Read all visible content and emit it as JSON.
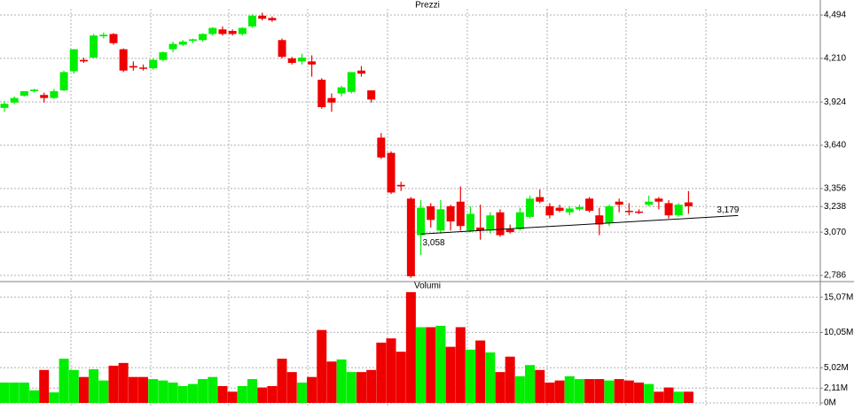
{
  "chart_data": [
    {
      "type": "candlestick",
      "title": "Prezzi",
      "up_color": "#00ee00",
      "down_color": "#ee0000",
      "open": [
        3885,
        3920,
        3965,
        3995,
        3970,
        3950,
        4000,
        4125,
        4200,
        4215,
        4355,
        4370,
        4270,
        4160,
        4150,
        4145,
        4200,
        4270,
        4300,
        4325,
        4330,
        4370,
        4400,
        4390,
        4370,
        4420,
        4490,
        4475,
        4330,
        4210,
        4190,
        4190,
        4070,
        3950,
        3980,
        3990,
        4130,
        4000,
        3690,
        3590,
        3380,
        3290,
        3050,
        3240,
        3080,
        3240,
        3270,
        3080,
        3100,
        3080,
        3200,
        3090,
        3090,
        3170,
        3300,
        3240,
        3230,
        3200,
        3220,
        3290,
        3180,
        3130,
        3270,
        3210,
        3205,
        3250,
        3290,
        3260,
        3180,
        3265
      ],
      "high": [
        3930,
        3960,
        3990,
        4010,
        3985,
        4010,
        4130,
        4270,
        4215,
        4370,
        4380,
        4375,
        4275,
        4190,
        4170,
        4210,
        4255,
        4320,
        4330,
        4340,
        4375,
        4415,
        4420,
        4400,
        4415,
        4500,
        4510,
        4485,
        4340,
        4220,
        4240,
        4230,
        4080,
        3980,
        4030,
        4120,
        4160,
        4000,
        3720,
        3600,
        3400,
        3300,
        3280,
        3260,
        3280,
        3250,
        3370,
        3240,
        3250,
        3200,
        3220,
        3120,
        3230,
        3310,
        3350,
        3260,
        3250,
        3240,
        3250,
        3300,
        3230,
        3250,
        3290,
        3260,
        3220,
        3310,
        3300,
        3280,
        3260,
        3340
      ],
      "low": [
        3860,
        3910,
        3960,
        3985,
        3920,
        3945,
        3995,
        4110,
        4180,
        4210,
        4340,
        4300,
        4120,
        4130,
        4130,
        4135,
        4190,
        4250,
        4290,
        4310,
        4320,
        4360,
        4360,
        4360,
        4360,
        4410,
        4460,
        4450,
        4210,
        4170,
        4170,
        4090,
        3880,
        3860,
        3960,
        3980,
        4090,
        3920,
        3550,
        3320,
        3340,
        2770,
        2920,
        3100,
        3060,
        3080,
        3080,
        3070,
        3020,
        3060,
        3040,
        3060,
        3080,
        3160,
        3260,
        3160,
        3200,
        3180,
        3210,
        3200,
        3050,
        3110,
        3200,
        3180,
        3190,
        3240,
        3220,
        3160,
        3170,
        3190
      ],
      "close": [
        3912,
        3950,
        3995,
        4005,
        3950,
        3995,
        4120,
        4270,
        4190,
        4360,
        4365,
        4310,
        4130,
        4150,
        4145,
        4200,
        4250,
        4305,
        4320,
        4335,
        4370,
        4410,
        4370,
        4370,
        4410,
        4490,
        4470,
        4460,
        4220,
        4180,
        4215,
        4170,
        3890,
        3920,
        4020,
        4120,
        4110,
        3940,
        3560,
        3330,
        3370,
        2780,
        3230,
        3150,
        3220,
        3140,
        3110,
        3190,
        3080,
        3180,
        3050,
        3070,
        3200,
        3290,
        3270,
        3180,
        3210,
        3225,
        3235,
        3210,
        3120,
        3240,
        3250,
        3205,
        3200,
        3270,
        3270,
        3180,
        3250,
        3240
      ],
      "trendline": {
        "x": [
          42,
          74
        ],
        "values": [
          3058,
          3179
        ],
        "value_labels": [
          "3,058",
          "3,179"
        ],
        "color": "#000000"
      },
      "ylim": [
        2757,
        4535
      ],
      "yticks": [
        {
          "value": 2786,
          "label": "2,786"
        },
        {
          "value": 3070,
          "label": "3,070"
        },
        {
          "value": 3238,
          "label": "3,238"
        },
        {
          "value": 3356,
          "label": "3,356"
        },
        {
          "value": 3640,
          "label": "3,640"
        },
        {
          "value": 3924,
          "label": "3,924"
        },
        {
          "value": 4210,
          "label": "4,210"
        },
        {
          "value": 4494,
          "label": "4,494"
        }
      ],
      "grid": true
    },
    {
      "type": "bar",
      "title": "Volumi",
      "values": [
        2.9,
        2.9,
        2.9,
        1.8,
        4.7,
        1.5,
        6.3,
        4.7,
        3.7,
        4.8,
        3.2,
        5.3,
        5.7,
        3.7,
        3.7,
        3.4,
        3.2,
        2.9,
        2.4,
        2.7,
        3.4,
        3.7,
        2.4,
        1.6,
        2.4,
        3.4,
        2.2,
        2.4,
        6.3,
        4.4,
        2.9,
        3.7,
        10.4,
        5.9,
        6.2,
        4.4,
        4.4,
        4.7,
        8.6,
        9.2,
        7.3,
        15.8,
        10.8,
        10.8,
        11.0,
        8.0,
        10.8,
        7.6,
        8.9,
        7.2,
        4.4,
        6.6,
        3.8,
        5.4,
        4.7,
        2.9,
        3.2,
        3.8,
        3.4,
        3.4,
        3.4,
        3.2,
        3.4,
        3.2,
        2.9,
        2.7,
        1.6,
        2.2,
        1.6,
        1.6
      ],
      "ylim": [
        0,
        17.3
      ],
      "yticks": [
        {
          "value": 0,
          "label": "0M"
        },
        {
          "value": 2.11,
          "label": "2,11M"
        },
        {
          "value": 5.02,
          "label": "5,02M"
        },
        {
          "value": 10.05,
          "label": "10,05M"
        },
        {
          "value": 15.07,
          "label": "15,07M"
        }
      ],
      "grid": true
    }
  ]
}
